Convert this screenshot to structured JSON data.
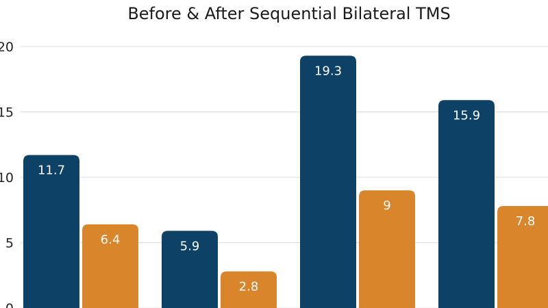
{
  "chart_data": {
    "type": "bar",
    "title": "Before & After Sequential Bilateral TMS",
    "xlabel": "",
    "ylabel": "",
    "ylim": [
      0,
      20
    ],
    "yticks": [
      0,
      5,
      10,
      15,
      20
    ],
    "yticks_text": [
      "0",
      "5",
      "10",
      "15",
      "20"
    ],
    "categories": [
      "",
      "",
      "",
      ""
    ],
    "grid": true,
    "series": [
      {
        "values": [
          11.7,
          5.9,
          19.3,
          15.9
        ],
        "labels": [
          "11.7",
          "5.9",
          "19.3",
          "15.9"
        ],
        "color": "#0e4166"
      },
      {
        "values": [
          6.4,
          2.8,
          9,
          7.8
        ],
        "labels": [
          "6.4",
          "2.8",
          "9",
          "7.8"
        ],
        "color": "#d8852c"
      }
    ]
  }
}
